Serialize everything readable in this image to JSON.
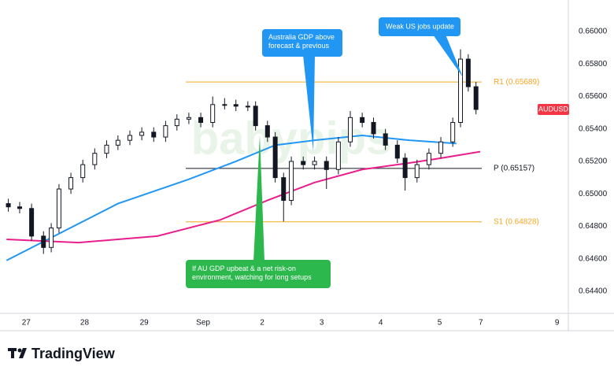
{
  "chart_data": {
    "type": "candlestick",
    "watermark": "babypips",
    "brand": "TradingView",
    "xlim": [
      -0.44,
      9.1
    ],
    "ylim": [
      0.64264,
      0.66194
    ],
    "grid": false,
    "xticks": [
      {
        "value": 0,
        "label": "27"
      },
      {
        "value": 0.98,
        "label": "28"
      },
      {
        "value": 1.98,
        "label": "29"
      },
      {
        "value": 2.97,
        "label": "Sep"
      },
      {
        "value": 3.96,
        "label": "2"
      },
      {
        "value": 4.96,
        "label": "3"
      },
      {
        "value": 5.95,
        "label": "4"
      },
      {
        "value": 6.94,
        "label": "5"
      },
      {
        "value": 7.63,
        "label": "7"
      },
      {
        "value": 8.91,
        "label": "9"
      }
    ],
    "yticks": [
      {
        "value": 0.644,
        "label": "0.64400"
      },
      {
        "value": 0.646,
        "label": "0.64600"
      },
      {
        "value": 0.648,
        "label": "0.64800"
      },
      {
        "value": 0.65,
        "label": "0.65000"
      },
      {
        "value": 0.652,
        "label": "0.65200"
      },
      {
        "value": 0.654,
        "label": "0.65400"
      },
      {
        "value": 0.656,
        "label": "0.65600"
      },
      {
        "value": 0.658,
        "label": "0.65800"
      },
      {
        "value": 0.66,
        "label": "0.66000"
      }
    ],
    "series": [
      {
        "name": "AUDUSD",
        "color": "#131722",
        "tag_color": "#f23645",
        "x": [
          -0.3,
          -0.11,
          0.09,
          0.29,
          0.42,
          0.55,
          0.75,
          0.95,
          1.15,
          1.35,
          1.54,
          1.74,
          1.94,
          2.14,
          2.34,
          2.53,
          2.73,
          2.93,
          3.13,
          3.33,
          3.52,
          3.72,
          3.85,
          4.05,
          4.18,
          4.32,
          4.45,
          4.65,
          4.84,
          5.04,
          5.24,
          5.44,
          5.64,
          5.83,
          6.03,
          6.23,
          6.36,
          6.56,
          6.76,
          6.96,
          7.16,
          7.29,
          7.42,
          7.55
        ],
        "open": [
          0.6494,
          0.6492,
          0.6491,
          0.6474,
          0.6467,
          0.6479,
          0.6503,
          0.651,
          0.6518,
          0.6525,
          0.653,
          0.6533,
          0.6536,
          0.6538,
          0.6535,
          0.6542,
          0.6546,
          0.6547,
          0.6544,
          0.6555,
          0.6555,
          0.6554,
          0.6554,
          0.6542,
          0.6535,
          0.651,
          0.6496,
          0.652,
          0.6518,
          0.652,
          0.6515,
          0.6532,
          0.6547,
          0.6544,
          0.6537,
          0.653,
          0.6522,
          0.651,
          0.6518,
          0.6525,
          0.6532,
          0.6544,
          0.6583,
          0.6566
        ],
        "high": [
          0.6497,
          0.6495,
          0.6494,
          0.6477,
          0.6482,
          0.6506,
          0.6513,
          0.6521,
          0.6528,
          0.6533,
          0.6536,
          0.6539,
          0.6541,
          0.6541,
          0.6545,
          0.6549,
          0.655,
          0.655,
          0.656,
          0.6559,
          0.6558,
          0.6557,
          0.6557,
          0.6545,
          0.6538,
          0.6513,
          0.6523,
          0.6523,
          0.6523,
          0.6523,
          0.6535,
          0.6551,
          0.655,
          0.6547,
          0.654,
          0.6533,
          0.6525,
          0.6521,
          0.6528,
          0.6535,
          0.6547,
          0.6589,
          0.6586,
          0.6569
        ],
        "low": [
          0.6489,
          0.6488,
          0.6471,
          0.6463,
          0.6464,
          0.6476,
          0.65,
          0.6507,
          0.6515,
          0.6522,
          0.6527,
          0.653,
          0.6533,
          0.6532,
          0.6532,
          0.6539,
          0.6543,
          0.6541,
          0.6541,
          0.6552,
          0.6551,
          0.6551,
          0.6539,
          0.6532,
          0.6507,
          0.6483,
          0.6493,
          0.6515,
          0.6515,
          0.6503,
          0.6512,
          0.6529,
          0.6541,
          0.6534,
          0.6527,
          0.6519,
          0.6502,
          0.6507,
          0.6515,
          0.6522,
          0.6529,
          0.6541,
          0.6563,
          0.6549
        ],
        "close": [
          0.6492,
          0.6491,
          0.6474,
          0.6467,
          0.6479,
          0.6503,
          0.651,
          0.6518,
          0.6525,
          0.653,
          0.6533,
          0.6536,
          0.6538,
          0.6535,
          0.6542,
          0.6546,
          0.6547,
          0.6544,
          0.6555,
          0.6555,
          0.6554,
          0.6554,
          0.6542,
          0.6535,
          0.651,
          0.6496,
          0.652,
          0.6518,
          0.652,
          0.6515,
          0.6532,
          0.6547,
          0.6544,
          0.6537,
          0.653,
          0.6522,
          0.651,
          0.6518,
          0.6525,
          0.6532,
          0.6544,
          0.6583,
          0.6566,
          0.6552
        ]
      }
    ],
    "overlays": [
      {
        "color": "#2196f3",
        "x": [
          -0.33,
          1.54,
          2.73,
          3.52,
          4.18,
          4.84,
          5.64,
          6.43,
          7.22
        ],
        "values": [
          0.6459,
          0.6494,
          0.6509,
          0.652,
          0.653,
          0.6533,
          0.6536,
          0.6533,
          0.6531
        ]
      },
      {
        "color": "#e91e8c",
        "x": [
          -0.33,
          0.88,
          2.2,
          3.26,
          4.05,
          4.84,
          5.64,
          6.43,
          6.96,
          7.62
        ],
        "values": [
          0.6472,
          0.647,
          0.6474,
          0.6484,
          0.6496,
          0.6507,
          0.6515,
          0.6519,
          0.6522,
          0.6526
        ]
      }
    ],
    "levels": [
      {
        "label": "R1 (0.65689)",
        "value": 0.65689,
        "color": "#f5a623"
      },
      {
        "label": "P (0.65157)",
        "value": 0.65157,
        "color": "#131722"
      },
      {
        "label": "S1 (0.64828)",
        "value": 0.64828,
        "color": "#f5a623"
      }
    ],
    "annotations": [
      "Australia GDP above forecast & previous",
      "Weak US jobs update",
      "If AU GDP upbeat & a net risk-on environment, watching for long setups"
    ]
  }
}
